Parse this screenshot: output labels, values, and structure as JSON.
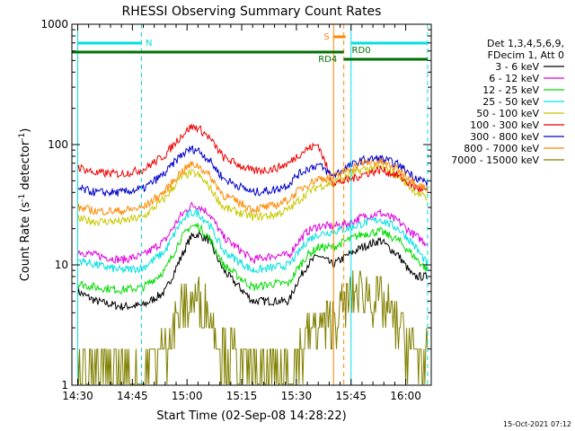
{
  "chart_data": {
    "type": "line",
    "title": "RHESSI Observing Summary Count Rates",
    "xlabel": "Start Time (02-Sep-08 14:28:22)",
    "ylabel": "Count Rate (s⁻¹ detector⁻¹)",
    "ylabel_base": "Count Rate (s",
    "ylabel_exp1": "-1",
    "ylabel_mid": " detector",
    "ylabel_exp2": "-1",
    "ylabel_end": ")",
    "y_scale": "log",
    "ylim": [
      1,
      1000
    ],
    "xlim_minutes_after_14_30": [
      -1.6,
      97
    ],
    "x_ticks": [
      {
        "label": "14:30",
        "min": 0
      },
      {
        "label": "14:45",
        "min": 15
      },
      {
        "label": "15:00",
        "min": 30
      },
      {
        "label": "15:15",
        "min": 45
      },
      {
        "label": "15:30",
        "min": 60
      },
      {
        "label": "15:45",
        "min": 75
      },
      {
        "label": "16:00",
        "min": 90
      }
    ],
    "y_ticks": [
      {
        "label": "1",
        "v": 1
      },
      {
        "label": "10",
        "v": 10
      },
      {
        "label": "100",
        "v": 100
      },
      {
        "label": "1000",
        "v": 1000
      }
    ],
    "legend_header": [
      "Det 1,3,4,5,6,9,",
      "FDecim 1, Att 0"
    ],
    "legend_position": "right",
    "series": [
      {
        "name": "3 - 6 keV",
        "color": "#000000",
        "x": [
          0,
          5,
          12,
          18,
          24,
          28,
          31,
          33,
          36,
          40,
          48,
          54,
          58,
          60,
          63,
          66,
          70,
          74,
          78,
          83,
          88,
          92,
          96
        ],
        "values": [
          6,
          5,
          4.5,
          4.6,
          6,
          11,
          17,
          18,
          16,
          9,
          5,
          5,
          5,
          7,
          10,
          12,
          10,
          12,
          14,
          16,
          12,
          8,
          8
        ]
      },
      {
        "name": "6 - 12 keV",
        "color": "#e000e0",
        "x": [
          0,
          5,
          12,
          18,
          24,
          28,
          31,
          33,
          36,
          40,
          48,
          54,
          58,
          60,
          63,
          66,
          70,
          74,
          78,
          83,
          88,
          92,
          96
        ],
        "values": [
          13,
          12,
          11,
          12,
          16,
          25,
          31,
          31,
          27,
          17,
          11,
          12,
          12,
          15,
          19,
          21,
          21,
          22,
          25,
          27,
          23,
          18,
          15
        ]
      },
      {
        "name": "12 - 25 keV",
        "color": "#00dd00",
        "x": [
          0,
          5,
          12,
          18,
          24,
          28,
          31,
          33,
          36,
          40,
          48,
          54,
          58,
          60,
          63,
          66,
          70,
          74,
          78,
          83,
          88,
          92,
          96
        ],
        "values": [
          7,
          6.5,
          6.2,
          6.5,
          9,
          16,
          21,
          21,
          17,
          10,
          6.5,
          7,
          7,
          9,
          12,
          14,
          14,
          16,
          18,
          19,
          16,
          12,
          9
        ]
      },
      {
        "name": "25 - 50 keV",
        "color": "#00e0e0",
        "x": [
          0,
          5,
          12,
          18,
          24,
          28,
          31,
          33,
          36,
          40,
          48,
          54,
          58,
          60,
          63,
          66,
          70,
          74,
          78,
          83,
          88,
          92,
          96
        ],
        "values": [
          11,
          10,
          9,
          9.5,
          13,
          22,
          27,
          27,
          22,
          13,
          9,
          9.5,
          10,
          12,
          16,
          18,
          19,
          20,
          22,
          24,
          20,
          15,
          10
        ]
      },
      {
        "name": "50 - 100 keV",
        "color": "#c8c800",
        "x": [
          0,
          5,
          12,
          18,
          24,
          28,
          31,
          33,
          36,
          40,
          48,
          54,
          58,
          60,
          63,
          66,
          70,
          74,
          78,
          83,
          88,
          92,
          96
        ],
        "values": [
          24,
          23,
          23,
          25,
          36,
          52,
          58,
          56,
          45,
          30,
          25,
          26,
          29,
          33,
          40,
          45,
          48,
          55,
          62,
          65,
          55,
          42,
          35
        ]
      },
      {
        "name": "100 - 300 keV",
        "color": "#ee0000",
        "x": [
          0,
          5,
          12,
          18,
          24,
          28,
          31,
          33,
          36,
          40,
          48,
          54,
          58,
          60,
          63,
          66,
          70,
          74,
          78,
          83,
          88,
          92,
          96
        ],
        "values": [
          65,
          58,
          57,
          62,
          82,
          115,
          140,
          138,
          115,
          78,
          60,
          63,
          70,
          80,
          92,
          100,
          48,
          50,
          56,
          62,
          55,
          45,
          40
        ]
      },
      {
        "name": "300 - 800 keV",
        "color": "#0000cc",
        "x": [
          0,
          5,
          12,
          18,
          24,
          28,
          31,
          33,
          36,
          40,
          48,
          54,
          58,
          60,
          63,
          66,
          70,
          74,
          78,
          83,
          88,
          92,
          96
        ],
        "values": [
          43,
          40,
          40,
          43,
          58,
          80,
          92,
          90,
          75,
          52,
          40,
          42,
          47,
          55,
          63,
          68,
          55,
          65,
          74,
          77,
          68,
          55,
          48
        ]
      },
      {
        "name": "800 - 7000 keV",
        "color": "#ff8800",
        "x": [
          0,
          5,
          12,
          18,
          24,
          28,
          31,
          33,
          36,
          40,
          48,
          54,
          58,
          60,
          63,
          66,
          70,
          74,
          78,
          83,
          88,
          92,
          96
        ],
        "values": [
          30,
          28,
          28,
          30,
          41,
          58,
          68,
          67,
          56,
          38,
          29,
          31,
          35,
          40,
          47,
          52,
          53,
          62,
          70,
          72,
          62,
          50,
          42
        ]
      },
      {
        "name": "7000 - 15000 keV",
        "color": "#808000",
        "x": [
          0,
          5,
          12,
          18,
          24,
          28,
          31,
          33,
          36,
          40,
          48,
          54,
          58,
          60,
          63,
          66,
          70,
          74,
          78,
          83,
          88,
          92,
          96
        ],
        "values": [
          1.5,
          1.3,
          1.4,
          1.3,
          2,
          4,
          5,
          5,
          4,
          2,
          1.3,
          1.3,
          1.4,
          1.5,
          2.5,
          3,
          3.5,
          5,
          6,
          5,
          3,
          2,
          1.5
        ]
      }
    ],
    "annotations": {
      "N": "N",
      "S": "S",
      "RD4": "RD4",
      "RD0": "RD0"
    },
    "grid": false
  },
  "timestamp": "15-Oct-2021 07:12"
}
